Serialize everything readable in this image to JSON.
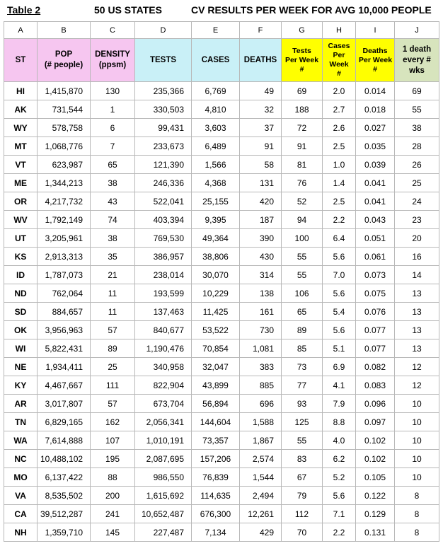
{
  "title": {
    "label": "Table 2",
    "subtitle": "50 US STATES",
    "heading": "CV RESULTS PER WEEK FOR AVG 10,000 PEOPLE"
  },
  "table": {
    "column_letters": [
      "A",
      "B",
      "C",
      "D",
      "E",
      "F",
      "G",
      "H",
      "I",
      "J"
    ],
    "headers": [
      [
        "ST"
      ],
      [
        "POP",
        "(# people)"
      ],
      [
        "DENSITY",
        "(ppsm)"
      ],
      [
        "TESTS"
      ],
      [
        "CASES"
      ],
      [
        "DEATHS"
      ],
      [
        "Tests",
        "Per Week",
        "#"
      ],
      [
        "Cases",
        "Per",
        "Week",
        "#"
      ],
      [
        "Deaths",
        "Per Week",
        "#"
      ],
      [
        "1 death",
        "every #",
        "wks"
      ]
    ],
    "rows": [
      [
        "HI",
        "1,415,870",
        "130",
        "235,366",
        "6,769",
        "49",
        "69",
        "2.0",
        "0.014",
        "69"
      ],
      [
        "AK",
        "731,544",
        "1",
        "330,503",
        "4,810",
        "32",
        "188",
        "2.7",
        "0.018",
        "55"
      ],
      [
        "WY",
        "578,758",
        "6",
        "99,431",
        "3,603",
        "37",
        "72",
        "2.6",
        "0.027",
        "38"
      ],
      [
        "MT",
        "1,068,776",
        "7",
        "233,673",
        "6,489",
        "91",
        "91",
        "2.5",
        "0.035",
        "28"
      ],
      [
        "VT",
        "623,987",
        "65",
        "121,390",
        "1,566",
        "58",
        "81",
        "1.0",
        "0.039",
        "26"
      ],
      [
        "ME",
        "1,344,213",
        "38",
        "246,336",
        "4,368",
        "131",
        "76",
        "1.4",
        "0.041",
        "25"
      ],
      [
        "OR",
        "4,217,732",
        "43",
        "522,041",
        "25,155",
        "420",
        "52",
        "2.5",
        "0.041",
        "24"
      ],
      [
        "WV",
        "1,792,149",
        "74",
        "403,394",
        "9,395",
        "187",
        "94",
        "2.2",
        "0.043",
        "23"
      ],
      [
        "UT",
        "3,205,961",
        "38",
        "769,530",
        "49,364",
        "390",
        "100",
        "6.4",
        "0.051",
        "20"
      ],
      [
        "KS",
        "2,913,313",
        "35",
        "386,957",
        "38,806",
        "430",
        "55",
        "5.6",
        "0.061",
        "16"
      ],
      [
        "ID",
        "1,787,073",
        "21",
        "238,014",
        "30,070",
        "314",
        "55",
        "7.0",
        "0.073",
        "14"
      ],
      [
        "ND",
        "762,064",
        "11",
        "193,599",
        "10,229",
        "138",
        "106",
        "5.6",
        "0.075",
        "13"
      ],
      [
        "SD",
        "884,657",
        "11",
        "137,463",
        "11,425",
        "161",
        "65",
        "5.4",
        "0.076",
        "13"
      ],
      [
        "OK",
        "3,956,963",
        "57",
        "840,677",
        "53,522",
        "730",
        "89",
        "5.6",
        "0.077",
        "13"
      ],
      [
        "WI",
        "5,822,431",
        "89",
        "1,190,476",
        "70,854",
        "1,081",
        "85",
        "5.1",
        "0.077",
        "13"
      ],
      [
        "NE",
        "1,934,411",
        "25",
        "340,958",
        "32,047",
        "383",
        "73",
        "6.9",
        "0.082",
        "12"
      ],
      [
        "KY",
        "4,467,667",
        "111",
        "822,904",
        "43,899",
        "885",
        "77",
        "4.1",
        "0.083",
        "12"
      ],
      [
        "AR",
        "3,017,807",
        "57",
        "673,704",
        "56,894",
        "696",
        "93",
        "7.9",
        "0.096",
        "10"
      ],
      [
        "TN",
        "6,829,165",
        "162",
        "2,056,341",
        "144,604",
        "1,588",
        "125",
        "8.8",
        "0.097",
        "10"
      ],
      [
        "WA",
        "7,614,888",
        "107",
        "1,010,191",
        "73,357",
        "1,867",
        "55",
        "4.0",
        "0.102",
        "10"
      ],
      [
        "NC",
        "10,488,102",
        "195",
        "2,087,695",
        "157,206",
        "2,574",
        "83",
        "6.2",
        "0.102",
        "10"
      ],
      [
        "MO",
        "6,137,422",
        "88",
        "986,550",
        "76,839",
        "1,544",
        "67",
        "5.2",
        "0.105",
        "10"
      ],
      [
        "VA",
        "8,535,502",
        "200",
        "1,615,692",
        "114,635",
        "2,494",
        "79",
        "5.6",
        "0.122",
        "8"
      ],
      [
        "CA",
        "39,512,287",
        "241",
        "10,652,487",
        "676,300",
        "12,261",
        "112",
        "7.1",
        "0.129",
        "8"
      ],
      [
        "NH",
        "1,359,710",
        "145",
        "227,487",
        "7,134",
        "429",
        "70",
        "2.2",
        "0.131",
        "8"
      ]
    ]
  }
}
